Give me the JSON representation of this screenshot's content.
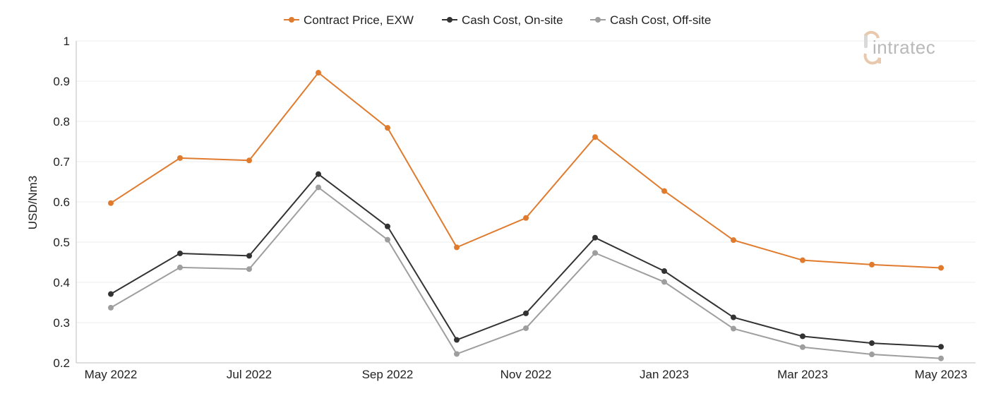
{
  "chart_data": {
    "type": "line",
    "categories": [
      "May 2022",
      "Jun 2022",
      "Jul 2022",
      "Aug 2022",
      "Sep 2022",
      "Oct 2022",
      "Nov 2022",
      "Dec 2022",
      "Jan 2023",
      "Feb 2023",
      "Mar 2023",
      "Apr 2023",
      "May 2023"
    ],
    "x_tick_labels": [
      "May 2022",
      "Jul 2022",
      "Sep 2022",
      "Nov 2022",
      "Jan 2023",
      "Mar 2023",
      "May 2023"
    ],
    "series": [
      {
        "name": "Contract Price, EXW",
        "color": "#e07b2e",
        "values": [
          0.597,
          0.709,
          0.703,
          0.921,
          0.784,
          0.487,
          0.56,
          0.761,
          0.627,
          0.505,
          0.455,
          0.444,
          0.436
        ]
      },
      {
        "name": "Cash Cost, On-site",
        "color": "#333333",
        "values": [
          0.371,
          0.472,
          0.466,
          0.669,
          0.539,
          0.257,
          0.323,
          0.511,
          0.428,
          0.313,
          0.266,
          0.249,
          0.24
        ]
      },
      {
        "name": "Cash Cost, Off-site",
        "color": "#9e9e9e",
        "values": [
          0.337,
          0.437,
          0.433,
          0.636,
          0.506,
          0.222,
          0.286,
          0.473,
          0.401,
          0.285,
          0.239,
          0.221,
          0.211
        ]
      }
    ],
    "ylabel": "USD/Nm3",
    "xlabel": "",
    "ylim": [
      0.2,
      1.0
    ],
    "y_ticks": [
      0.2,
      0.3,
      0.4,
      0.5,
      0.6,
      0.7,
      0.8,
      0.9,
      1
    ],
    "grid": "horizontal",
    "legend_position": "top-center"
  },
  "logo": {
    "text": "intratec"
  }
}
